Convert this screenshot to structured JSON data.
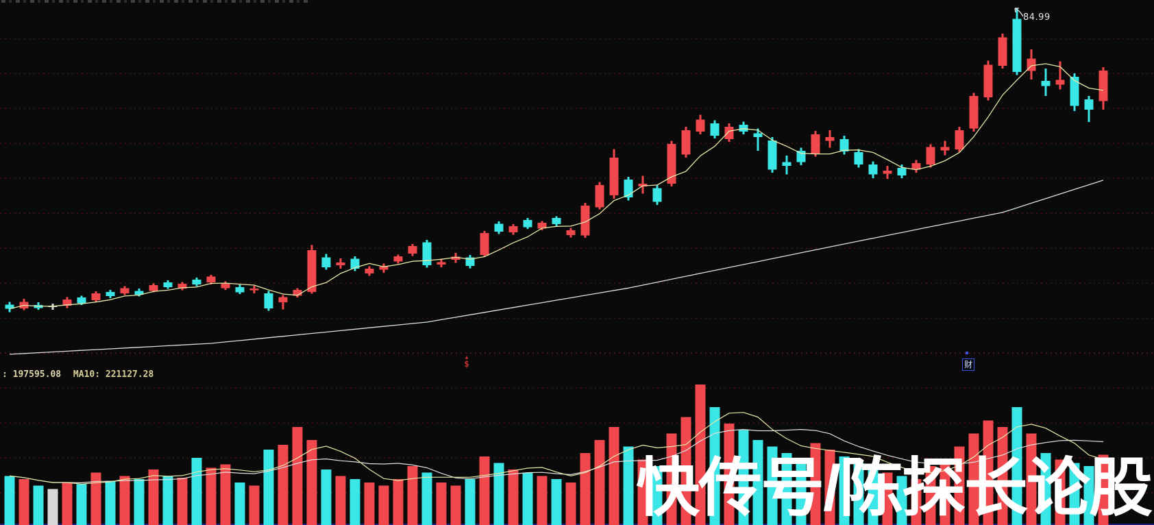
{
  "watermark_text": "快传号/陈探长论股",
  "annotations": {
    "peak_label": "84.99",
    "event_dollar": "$",
    "event_dollar_arrow": "▲",
    "event_cai": "财"
  },
  "volume_header": {
    "ma5_text": ": 197595.08",
    "ma10_text": "MA10: 221127.28"
  },
  "colors": {
    "background": "#0a0a0a",
    "up_red": "#f0484c",
    "down_cyan": "#3ae6e6",
    "doji_white": "#d8d8d8",
    "ma_short_yellow": "#e8e8a8",
    "ma_long_white": "#e0e0e0",
    "grid_dot_red": "#4a1515",
    "separator_red": "#641c1c",
    "frame_blue": "#1c1c7a",
    "label_khaki": "#d8cf98",
    "event_red": "#d03030",
    "event_blue": "#3a55e0"
  },
  "chart_data": [
    {
      "type": "candlestick",
      "title": "",
      "ohlc_format": "[open, high, low, close]",
      "up_rule": "close >= open is red (CN convention), close < open is cyan",
      "ylim": [
        9.9,
        86.7
      ],
      "grid": "faint dotted dark-red horizontal lines",
      "high_annotation": {
        "label": "84.99",
        "candle_index": 70
      },
      "candles": [
        [
          22.3,
          22.9,
          20.7,
          21.4
        ],
        [
          21.5,
          23.5,
          21.1,
          22.9
        ],
        [
          22.2,
          22.8,
          21.2,
          21.6
        ],
        [
          21.9,
          22.5,
          21.2,
          21.9
        ],
        [
          22.1,
          23.9,
          21.6,
          23.4
        ],
        [
          23.8,
          24.2,
          22.2,
          22.6
        ],
        [
          23.2,
          25.1,
          22.8,
          24.7
        ],
        [
          25.0,
          25.4,
          23.7,
          24.1
        ],
        [
          24.7,
          26.2,
          24.3,
          25.8
        ],
        [
          25.2,
          25.7,
          24.0,
          24.4
        ],
        [
          25.2,
          26.8,
          24.9,
          26.4
        ],
        [
          27.0,
          27.4,
          25.6,
          26.0
        ],
        [
          25.7,
          27.1,
          25.3,
          26.7
        ],
        [
          27.6,
          28.0,
          26.2,
          26.6
        ],
        [
          27.0,
          28.6,
          26.6,
          28.2
        ],
        [
          25.8,
          27.2,
          25.4,
          26.7
        ],
        [
          26.0,
          26.5,
          24.5,
          24.9
        ],
        [
          25.3,
          26.3,
          24.7,
          25.7
        ],
        [
          24.7,
          25.2,
          21.0,
          21.5
        ],
        [
          22.8,
          24.3,
          21.3,
          23.9
        ],
        [
          24.2,
          25.8,
          23.8,
          25.4
        ],
        [
          25.0,
          34.9,
          24.6,
          33.8
        ],
        [
          32.3,
          33.0,
          29.7,
          30.2
        ],
        [
          30.6,
          32.1,
          29.9,
          31.2
        ],
        [
          32.0,
          32.5,
          29.4,
          29.9
        ],
        [
          28.9,
          30.4,
          28.4,
          29.9
        ],
        [
          29.7,
          31.0,
          29.0,
          30.3
        ],
        [
          31.4,
          32.9,
          31.0,
          32.5
        ],
        [
          33.1,
          35.1,
          32.6,
          34.7
        ],
        [
          35.5,
          36.0,
          30.1,
          30.6
        ],
        [
          30.8,
          32.0,
          30.2,
          31.3
        ],
        [
          31.8,
          33.2,
          31.1,
          32.4
        ],
        [
          32.3,
          32.8,
          30.0,
          30.5
        ],
        [
          32.8,
          37.9,
          32.4,
          37.4
        ],
        [
          39.4,
          39.9,
          37.2,
          37.7
        ],
        [
          37.6,
          39.3,
          37.1,
          38.9
        ],
        [
          40.2,
          40.6,
          38.3,
          38.7
        ],
        [
          38.4,
          40.0,
          38.0,
          39.6
        ],
        [
          40.6,
          41.0,
          38.9,
          39.3
        ],
        [
          37.0,
          38.5,
          36.5,
          38.0
        ],
        [
          36.9,
          43.8,
          36.4,
          43.2
        ],
        [
          42.9,
          48.2,
          42.4,
          47.6
        ],
        [
          45.4,
          55.2,
          44.7,
          53.4
        ],
        [
          48.7,
          49.3,
          44.3,
          45.0
        ],
        [
          47.3,
          49.5,
          45.8,
          47.9
        ],
        [
          46.9,
          47.5,
          43.4,
          44.0
        ],
        [
          47.9,
          56.9,
          47.3,
          56.3
        ],
        [
          54.0,
          59.9,
          53.4,
          59.2
        ],
        [
          58.9,
          62.4,
          58.3,
          61.4
        ],
        [
          60.6,
          61.3,
          57.4,
          58.0
        ],
        [
          57.3,
          60.6,
          56.7,
          59.9
        ],
        [
          60.3,
          61.0,
          58.3,
          58.9
        ],
        [
          58.5,
          59.5,
          54.8,
          57.7
        ],
        [
          57.0,
          57.7,
          50.2,
          50.8
        ],
        [
          52.4,
          53.8,
          49.8,
          51.6
        ],
        [
          54.8,
          55.5,
          51.8,
          52.4
        ],
        [
          54.2,
          59.0,
          53.6,
          58.3
        ],
        [
          56.9,
          59.2,
          55.5,
          57.7
        ],
        [
          57.3,
          58.0,
          54.0,
          54.7
        ],
        [
          54.5,
          55.2,
          51.3,
          51.9
        ],
        [
          51.9,
          52.6,
          49.0,
          49.8
        ],
        [
          50.0,
          51.6,
          48.9,
          50.6
        ],
        [
          51.2,
          51.9,
          49.0,
          49.6
        ],
        [
          50.8,
          52.9,
          50.2,
          52.2
        ],
        [
          51.9,
          56.2,
          51.3,
          55.6
        ],
        [
          54.9,
          56.9,
          53.9,
          55.6
        ],
        [
          55.1,
          59.9,
          54.5,
          59.2
        ],
        [
          59.5,
          67.1,
          58.9,
          66.4
        ],
        [
          66.1,
          73.9,
          65.5,
          73.0
        ],
        [
          72.8,
          79.6,
          72.2,
          78.8
        ],
        [
          82.7,
          84.99,
          70.8,
          71.5
        ],
        [
          71.7,
          76.3,
          69.9,
          74.3
        ],
        [
          69.6,
          72.2,
          66.4,
          68.5
        ],
        [
          68.8,
          73.7,
          67.8,
          69.8
        ],
        [
          70.5,
          71.2,
          63.2,
          64.3
        ],
        [
          65.7,
          66.4,
          60.9,
          63.5
        ],
        [
          65.3,
          72.5,
          63.5,
          71.8
        ]
      ],
      "ma_short": {
        "name": "short moving average",
        "color": "yellow",
        "period": 5
      },
      "ma_long_anchors": [
        [
          0,
          11.8
        ],
        [
          14,
          14.1
        ],
        [
          29,
          18.6
        ],
        [
          43,
          25.8
        ],
        [
          57,
          34.5
        ],
        [
          69,
          41.8
        ],
        [
          76,
          48.6
        ]
      ]
    },
    {
      "type": "bar",
      "title": "volume pane",
      "ylim": [
        0,
        440000
      ],
      "values": [
        150000,
        140000,
        120000,
        110000,
        130000,
        125000,
        160000,
        135000,
        150000,
        140000,
        170000,
        150000,
        145000,
        205000,
        175000,
        185000,
        130000,
        120000,
        230000,
        245000,
        300000,
        260000,
        170000,
        150000,
        140000,
        130000,
        120000,
        140000,
        180000,
        160000,
        130000,
        120000,
        140000,
        210000,
        190000,
        170000,
        160000,
        150000,
        140000,
        130000,
        220000,
        260000,
        300000,
        240000,
        200000,
        180000,
        280000,
        330000,
        430000,
        360000,
        310000,
        290000,
        260000,
        240000,
        220000,
        200000,
        250000,
        230000,
        210000,
        190000,
        170000,
        160000,
        150000,
        140000,
        180000,
        200000,
        240000,
        280000,
        320000,
        300000,
        360000,
        280000,
        220000,
        200000,
        190000,
        180000,
        215000
      ],
      "bar_color_rule": "matches candle color of same index",
      "ma5_current": 197595.08,
      "ma10_current": 221127.28
    }
  ]
}
